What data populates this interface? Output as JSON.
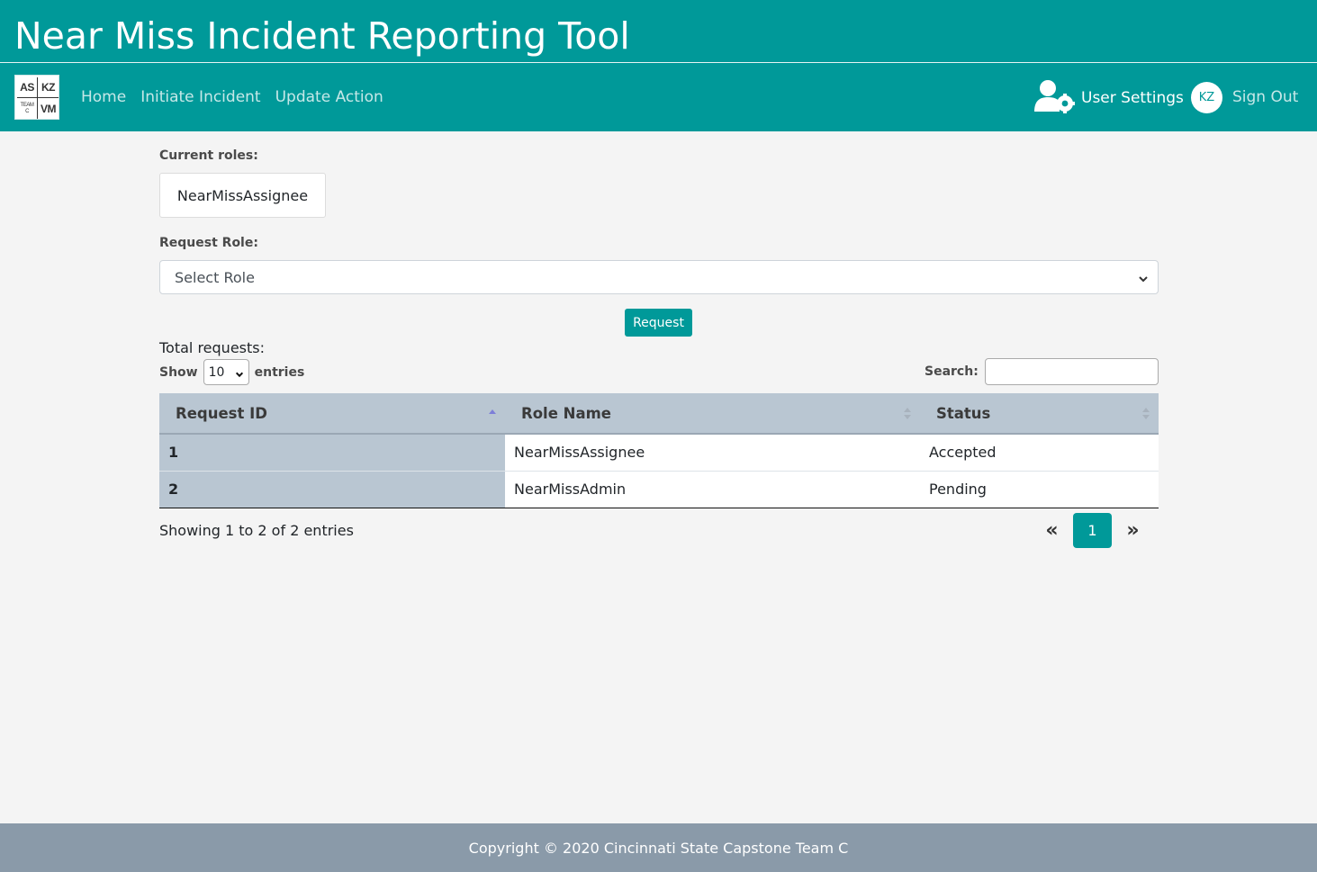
{
  "header": {
    "app_title": "Near Miss Incident Reporting Tool"
  },
  "logo": {
    "cell_tl": "AS",
    "cell_tr": "KZ",
    "cell_bl_line1": "TEAM",
    "cell_bl_line2": "C",
    "cell_br": "VM"
  },
  "nav": {
    "items": [
      {
        "label": "Home"
      },
      {
        "label": "Initiate Incident"
      },
      {
        "label": "Update Action"
      }
    ],
    "user_settings_label": "User Settings",
    "avatar_initials": "KZ",
    "sign_out_label": "Sign Out"
  },
  "roles": {
    "current_label": "Current roles:",
    "current_role": "NearMissAssignee",
    "request_label": "Request Role:",
    "select_value": "Select Role",
    "request_button": "Request"
  },
  "requests": {
    "total_label": "Total requests:",
    "show_label": "Show",
    "page_length": "10",
    "entries_label": "entries",
    "search_label": "Search:",
    "search_value": "",
    "columns": [
      "Request ID",
      "Role Name",
      "Status"
    ],
    "rows": [
      {
        "id": "1",
        "role": "NearMissAssignee",
        "status": "Accepted"
      },
      {
        "id": "2",
        "role": "NearMissAdmin",
        "status": "Pending"
      }
    ],
    "info": "Showing 1 to 2 of 2 entries",
    "pager": {
      "prev": "«",
      "current": "1",
      "next": "»"
    }
  },
  "footer": {
    "text": "Copyright © 2020 Cincinnati State Capstone Team C"
  },
  "colors": {
    "brand": "#009999",
    "table_header": "#b9c6d2",
    "footer": "#8a9aa9"
  }
}
